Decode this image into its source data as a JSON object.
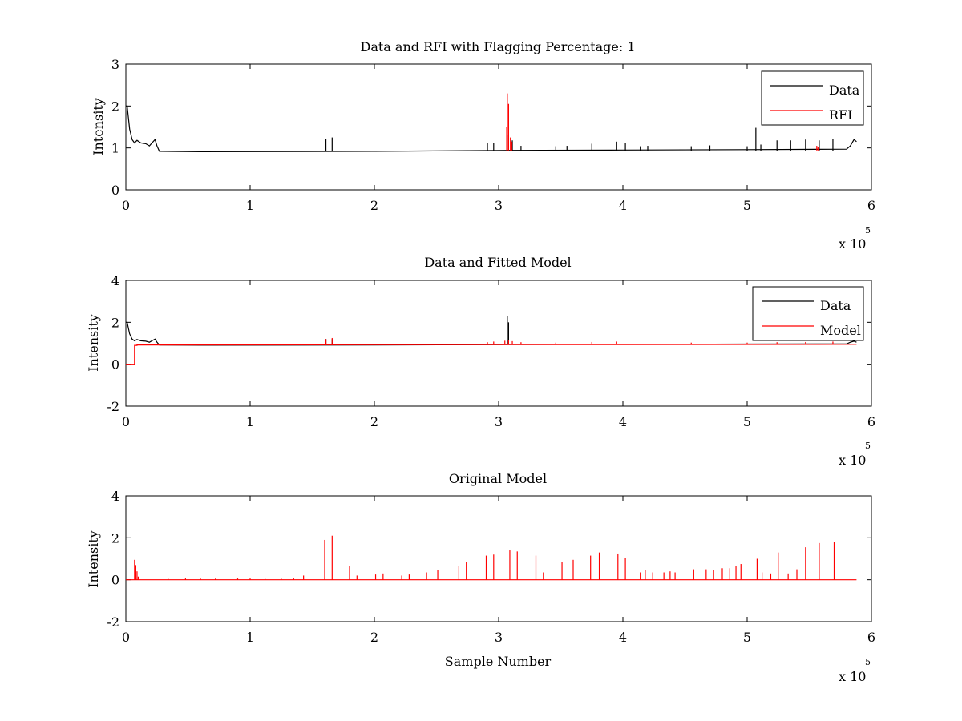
{
  "chart_data": [
    {
      "type": "line",
      "title": "Data and RFI with Flagging Percentage: 1",
      "xlabel": "",
      "ylabel": "Intensity",
      "xlim": [
        0,
        600000
      ],
      "ylim": [
        0,
        3
      ],
      "xticks": [
        0,
        1,
        2,
        3,
        4,
        5,
        6
      ],
      "yticks": [
        0,
        1,
        2,
        3
      ],
      "x_multiplier": "x 10",
      "x_multiplier_exp": "5",
      "legend_location": "top-right",
      "series": [
        {
          "name": "Data",
          "color": "#000000",
          "baseline_points": [
            [
              0,
              2.0
            ],
            [
              1000,
              2.0
            ],
            [
              3000,
              1.45
            ],
            [
              5000,
              1.2
            ],
            [
              7000,
              1.12
            ],
            [
              9000,
              1.18
            ],
            [
              12000,
              1.12
            ],
            [
              16000,
              1.1
            ],
            [
              19000,
              1.05
            ],
            [
              21000,
              1.12
            ],
            [
              23500,
              1.2
            ],
            [
              25000,
              1.05
            ],
            [
              27000,
              0.92
            ],
            [
              60000,
              0.91
            ],
            [
              200000,
              0.92
            ],
            [
              300000,
              0.94
            ],
            [
              400000,
              0.95
            ],
            [
              500000,
              0.96
            ],
            [
              580000,
              0.97
            ],
            [
              583000,
              1.05
            ],
            [
              586000,
              1.2
            ],
            [
              588000,
              1.15
            ]
          ],
          "spikes": [
            [
              161000,
              1.22
            ],
            [
              166000,
              1.25
            ],
            [
              307000,
              1.3
            ],
            [
              311000,
              1.18
            ],
            [
              318000,
              1.05
            ],
            [
              291000,
              1.12
            ],
            [
              296000,
              1.12
            ],
            [
              346000,
              1.04
            ],
            [
              355000,
              1.05
            ],
            [
              375000,
              1.1
            ],
            [
              395000,
              1.15
            ],
            [
              402000,
              1.12
            ],
            [
              414000,
              1.04
            ],
            [
              420000,
              1.05
            ],
            [
              455000,
              1.04
            ],
            [
              470000,
              1.06
            ],
            [
              500000,
              1.04
            ],
            [
              507000,
              1.48
            ],
            [
              511000,
              1.08
            ],
            [
              524000,
              1.18
            ],
            [
              535000,
              1.18
            ],
            [
              547000,
              1.2
            ],
            [
              558000,
              1.18
            ],
            [
              569000,
              1.22
            ]
          ],
          "spike_base": 0.93
        },
        {
          "name": "RFI",
          "color": "#ff0000",
          "spikes": [
            [
              307000,
              2.3
            ],
            [
              308000,
              2.05
            ],
            [
              306500,
              1.5
            ],
            [
              309500,
              1.25
            ],
            [
              310500,
              1.15
            ],
            [
              556000,
              1.05
            ],
            [
              557000,
              1.02
            ]
          ],
          "spike_base": 0.94
        }
      ]
    },
    {
      "type": "line",
      "title": "Data and Fitted Model",
      "xlabel": "",
      "ylabel": "Intensity",
      "xlim": [
        0,
        600000
      ],
      "ylim": [
        -2,
        4
      ],
      "xticks": [
        0,
        1,
        2,
        3,
        4,
        5,
        6
      ],
      "yticks": [
        -2,
        0,
        2,
        4
      ],
      "x_multiplier": "x 10",
      "x_multiplier_exp": "5",
      "legend_location": "top-right",
      "series": [
        {
          "name": "Data",
          "color": "#000000",
          "baseline_points": [
            [
              0,
              2.0
            ],
            [
              1000,
              2.0
            ],
            [
              3000,
              1.45
            ],
            [
              5000,
              1.2
            ],
            [
              7000,
              1.12
            ],
            [
              9000,
              1.18
            ],
            [
              12000,
              1.12
            ],
            [
              16000,
              1.1
            ],
            [
              19000,
              1.05
            ],
            [
              21000,
              1.12
            ],
            [
              23500,
              1.2
            ],
            [
              25000,
              1.05
            ],
            [
              27000,
              0.92
            ],
            [
              60000,
              0.91
            ],
            [
              200000,
              0.92
            ],
            [
              300000,
              0.94
            ],
            [
              400000,
              0.95
            ],
            [
              500000,
              0.96
            ],
            [
              580000,
              0.97
            ],
            [
              583000,
              1.05
            ],
            [
              586000,
              1.1
            ],
            [
              588000,
              1.05
            ]
          ],
          "spikes": [
            [
              307000,
              2.3
            ],
            [
              308000,
              2.0
            ],
            [
              161000,
              1.2
            ],
            [
              166000,
              1.2
            ]
          ],
          "spike_base": 0.93
        },
        {
          "name": "Model",
          "color": "#ff0000",
          "baseline_points": [
            [
              0,
              0.0
            ],
            [
              7000,
              0.0
            ],
            [
              7000,
              0.9
            ],
            [
              9000,
              0.9
            ],
            [
              9000,
              0.92
            ],
            [
              200000,
              0.93
            ],
            [
              400000,
              0.94
            ],
            [
              588000,
              0.95
            ]
          ],
          "spikes": [
            [
              161000,
              1.2
            ],
            [
              166000,
              1.25
            ],
            [
              291000,
              1.05
            ],
            [
              296000,
              1.08
            ],
            [
              305000,
              1.12
            ],
            [
              308000,
              1.15
            ],
            [
              311000,
              1.1
            ],
            [
              318000,
              1.05
            ],
            [
              346000,
              1.03
            ],
            [
              375000,
              1.06
            ],
            [
              395000,
              1.08
            ],
            [
              455000,
              1.03
            ],
            [
              500000,
              1.03
            ],
            [
              524000,
              1.05
            ],
            [
              547000,
              1.06
            ],
            [
              569000,
              1.08
            ]
          ],
          "spike_base": 0.94
        }
      ]
    },
    {
      "type": "line",
      "title": "Original Model",
      "xlabel": "Sample Number",
      "ylabel": "Intensity",
      "xlim": [
        0,
        600000
      ],
      "ylim": [
        -2,
        4
      ],
      "xticks": [
        0,
        1,
        2,
        3,
        4,
        5,
        6
      ],
      "yticks": [
        -2,
        0,
        2,
        4
      ],
      "x_multiplier": "x 10",
      "x_multiplier_exp": "5",
      "series": [
        {
          "color": "#ff0000",
          "baseline_points": [
            [
              0,
              0.0
            ],
            [
              588000,
              0.0
            ]
          ],
          "spike_base": 0.0,
          "spikes": [
            [
              7000,
              0.95
            ],
            [
              8000,
              0.7
            ],
            [
              9000,
              0.4
            ],
            [
              10000,
              0.15
            ],
            [
              34000,
              0.05
            ],
            [
              48000,
              0.06
            ],
            [
              60000,
              0.06
            ],
            [
              72000,
              0.05
            ],
            [
              90000,
              0.06
            ],
            [
              100000,
              0.06
            ],
            [
              112000,
              0.05
            ],
            [
              125000,
              0.06
            ],
            [
              135000,
              0.1
            ],
            [
              143000,
              0.2
            ],
            [
              160000,
              1.9
            ],
            [
              166000,
              2.1
            ],
            [
              180000,
              0.65
            ],
            [
              186000,
              0.2
            ],
            [
              201000,
              0.25
            ],
            [
              207000,
              0.3
            ],
            [
              222000,
              0.2
            ],
            [
              228000,
              0.25
            ],
            [
              242000,
              0.35
            ],
            [
              251000,
              0.45
            ],
            [
              268000,
              0.65
            ],
            [
              274000,
              0.85
            ],
            [
              290000,
              1.15
            ],
            [
              296000,
              1.2
            ],
            [
              309000,
              1.4
            ],
            [
              315000,
              1.35
            ],
            [
              330000,
              1.15
            ],
            [
              336000,
              0.35
            ],
            [
              351000,
              0.85
            ],
            [
              360000,
              0.95
            ],
            [
              374000,
              1.15
            ],
            [
              381000,
              1.3
            ],
            [
              396000,
              1.25
            ],
            [
              402000,
              1.05
            ],
            [
              414000,
              0.35
            ],
            [
              418000,
              0.45
            ],
            [
              424000,
              0.35
            ],
            [
              433000,
              0.35
            ],
            [
              438000,
              0.4
            ],
            [
              442000,
              0.35
            ],
            [
              457000,
              0.5
            ],
            [
              467000,
              0.5
            ],
            [
              473000,
              0.45
            ],
            [
              480000,
              0.55
            ],
            [
              486000,
              0.55
            ],
            [
              491000,
              0.65
            ],
            [
              495000,
              0.75
            ],
            [
              508000,
              1.0
            ],
            [
              512000,
              0.35
            ],
            [
              519000,
              0.3
            ],
            [
              525000,
              1.3
            ],
            [
              533000,
              0.3
            ],
            [
              540000,
              0.5
            ],
            [
              547000,
              1.55
            ],
            [
              558000,
              1.75
            ],
            [
              570000,
              1.8
            ]
          ]
        }
      ]
    }
  ]
}
